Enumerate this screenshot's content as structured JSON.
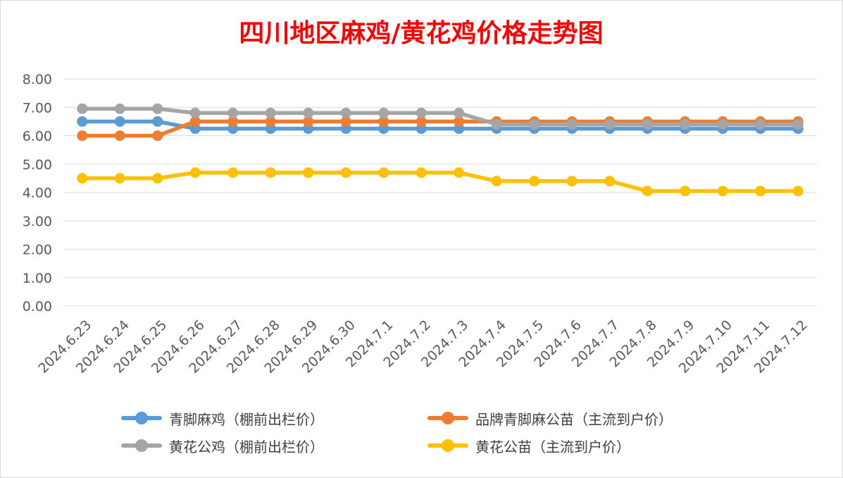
{
  "chart_data": {
    "type": "line",
    "title": "四川地区麻鸡/黄花鸡价格走势图",
    "xlabel": "",
    "ylabel": "",
    "categories": [
      "2024.6.23",
      "2024.6.24",
      "2024.6.25",
      "2024.6.26",
      "2024.6.27",
      "2024.6.28",
      "2024.6.29",
      "2024.6.30",
      "2024.7.1",
      "2024.7.2",
      "2024.7.3",
      "2024.7.4",
      "2024.7.5",
      "2024.7.6",
      "2024.7.7",
      "2024.7.8",
      "2024.7.9",
      "2024.7.10",
      "2024.7.11",
      "2024.7.12"
    ],
    "y_ticks": [
      "0.00",
      "1.00",
      "2.00",
      "3.00",
      "4.00",
      "5.00",
      "6.00",
      "7.00",
      "8.00"
    ],
    "ylim": [
      0,
      8
    ],
    "grid": true,
    "legend_position": "bottom",
    "series": [
      {
        "name": "青脚麻鸡（棚前出栏价）",
        "color": "#5B9BD5",
        "values": [
          6.5,
          6.5,
          6.5,
          6.25,
          6.25,
          6.25,
          6.25,
          6.25,
          6.25,
          6.25,
          6.25,
          6.25,
          6.25,
          6.25,
          6.25,
          6.25,
          6.25,
          6.25,
          6.25,
          6.25
        ]
      },
      {
        "name": "品牌青脚麻公苗（主流到户价）",
        "color": "#ED7D31",
        "values": [
          6.0,
          6.0,
          6.0,
          6.5,
          6.5,
          6.5,
          6.5,
          6.5,
          6.5,
          6.5,
          6.5,
          6.5,
          6.5,
          6.5,
          6.5,
          6.5,
          6.5,
          6.5,
          6.5,
          6.5
        ]
      },
      {
        "name": "黄花公鸡（棚前出栏价）",
        "color": "#A5A5A5",
        "values": [
          6.95,
          6.95,
          6.95,
          6.8,
          6.8,
          6.8,
          6.8,
          6.8,
          6.8,
          6.8,
          6.8,
          6.4,
          6.4,
          6.4,
          6.4,
          6.4,
          6.4,
          6.4,
          6.4,
          6.4
        ]
      },
      {
        "name": "黄花公苗（主流到户价）",
        "color": "#FFC000",
        "values": [
          4.5,
          4.5,
          4.5,
          4.7,
          4.7,
          4.7,
          4.7,
          4.7,
          4.7,
          4.7,
          4.7,
          4.4,
          4.4,
          4.4,
          4.4,
          4.05,
          4.05,
          4.05,
          4.05,
          4.05
        ]
      }
    ],
    "title_color": "#FF0000"
  }
}
